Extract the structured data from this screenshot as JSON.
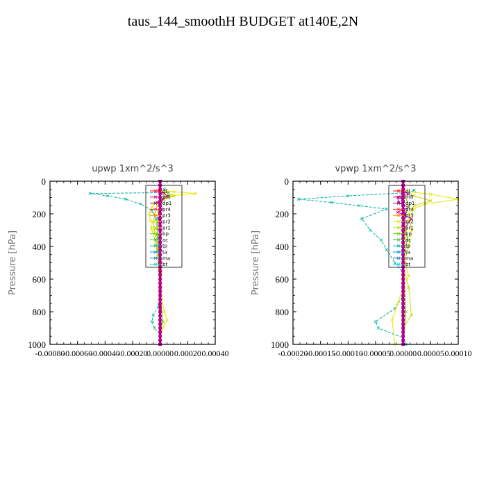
{
  "title": "taus_144_smoothH  BUDGET at140E,2N",
  "legend_labels": [
    "dt",
    "mfl",
    "dp1",
    "pr4",
    "pr3",
    "pr2",
    "pr1",
    "bp",
    "ac",
    "tp",
    "ta",
    "ma",
    "bt"
  ],
  "series_colors": {
    "dt": "#ff0000",
    "mfl": "#c0008c",
    "dp1": "#800080",
    "pr4": "#ff3030",
    "pr3": "#ff8000",
    "pr2": "#e6e600",
    "pr1": "#c8d800",
    "bp": "#60d000",
    "ac": "#30c040",
    "tp": "#00b0a0",
    "ta": "#0090d0",
    "ma": "#2070c0",
    "bt": "#00d0e0"
  },
  "chart_data": [
    {
      "type": "line",
      "title": "upwp   1xm^2/s^3",
      "ylabel": "Pressure [hPa]",
      "xlabel": "",
      "xlim": [
        -0.0008,
        0.0004
      ],
      "ylim": [
        1000,
        0
      ],
      "y_inverted": true,
      "xticks": [
        -0.0008,
        -0.0006,
        -0.0004,
        -0.0002,
        0.0,
        0.0002,
        0.0004
      ],
      "xtick_labels": [
        "-0.00080",
        "-0.00060",
        "-0.00040",
        "-0.00020",
        "0.00000",
        "0.00020",
        "0.00040"
      ],
      "yticks": [
        0,
        200,
        400,
        600,
        800,
        1000
      ],
      "ytick_labels": [
        "0",
        "200",
        "400",
        "600",
        "800",
        "1000"
      ],
      "legend_position": "upper-right inside",
      "series": [
        {
          "name": "tp",
          "x": [
            3e-05,
            6e-05,
            -0.00051,
            -0.00038,
            -0.00025,
            -0.00014,
            -6e-05,
            -3e-05,
            -2e-05,
            -1.5e-05,
            -1e-05,
            -1e-05,
            -5e-06,
            0.0,
            -1e-05,
            -5e-05,
            -6e-05,
            -4e-05,
            0.0,
            0.0,
            0.0
          ],
          "y": [
            50,
            70,
            75,
            90,
            110,
            140,
            180,
            230,
            290,
            350,
            420,
            500,
            560,
            650,
            760,
            820,
            860,
            900,
            940,
            975,
            1000
          ]
        },
        {
          "name": "pr2",
          "x": [
            0.0,
            0.0001,
            0.00026,
            8e-05,
            -4e-05,
            -6e-05,
            -8e-05,
            -7e-05,
            -6e-05,
            -3e-05,
            0.0,
            1e-05,
            0.0,
            3e-05,
            5e-05,
            2e-05,
            0.0,
            0.0
          ],
          "y": [
            55,
            65,
            75,
            90,
            130,
            160,
            200,
            240,
            300,
            380,
            480,
            560,
            650,
            800,
            850,
            900,
            950,
            1000
          ]
        },
        {
          "name": "pr1",
          "x": [
            0.0,
            6e-05,
            0.0001,
            3e-05,
            -2e-05,
            -4e-05,
            -5e-05,
            -4e-05,
            -3e-05,
            -2e-05,
            -1e-05,
            0.0,
            0.0,
            0.0
          ],
          "y": [
            60,
            75,
            90,
            110,
            150,
            200,
            250,
            300,
            380,
            460,
            540,
            650,
            800,
            1000
          ]
        },
        {
          "name": "bp",
          "x": [
            0.0,
            3e-05,
            1e-05,
            -1e-05,
            -2e-05,
            -2e-05,
            -1.5e-05,
            -1e-05,
            0.0,
            0.0,
            2e-05,
            0.0,
            0.0
          ],
          "y": [
            60,
            90,
            130,
            180,
            250,
            330,
            420,
            500,
            560,
            700,
            860,
            920,
            1000
          ]
        },
        {
          "name": "mfl",
          "x": [
            -1e-05,
            3e-05,
            5e-05,
            2e-05,
            -2e-05,
            1e-05,
            -1e-05,
            0.0,
            0.0,
            0.0,
            0.0
          ],
          "y": [
            60,
            75,
            90,
            110,
            130,
            170,
            230,
            350,
            500,
            700,
            1000
          ]
        },
        {
          "name": "dt",
          "x": [
            0.0,
            0.0,
            0.0,
            0.0,
            0.0,
            0.0,
            0.0,
            0.0,
            0.0,
            0.0,
            0.0
          ],
          "y": [
            0,
            100,
            200,
            300,
            400,
            500,
            600,
            700,
            800,
            900,
            1000
          ]
        },
        {
          "name": "dp1",
          "x": [
            0.0,
            5e-06,
            -5e-06,
            0.0,
            0.0,
            0.0,
            0.0
          ],
          "y": [
            0,
            100,
            200,
            400,
            600,
            800,
            1000
          ]
        }
      ]
    },
    {
      "type": "line",
      "title": "vpwp   1xm^2/s^3",
      "ylabel": "Pressure [hPa]",
      "xlabel": "",
      "xlim": [
        -0.0002,
        0.0001
      ],
      "ylim": [
        1000,
        0
      ],
      "y_inverted": true,
      "xticks": [
        -0.0002,
        -0.00015,
        -0.0001,
        -5e-05,
        0.0,
        5e-05,
        0.0001
      ],
      "xtick_labels": [
        "-0.00020",
        "-0.00015",
        "-0.00010",
        "-0.00005",
        "0.00000",
        "0.00005",
        "0.00010"
      ],
      "yticks": [
        0,
        200,
        400,
        600,
        800,
        1000
      ],
      "ytick_labels": [
        "0",
        "200",
        "400",
        "600",
        "800",
        "1000"
      ],
      "legend_position": "upper-right inside",
      "series": [
        {
          "name": "tp",
          "x": [
            2e-05,
            1e-05,
            -0.0001,
            -0.00019,
            -0.00013,
            -8e-05,
            -3e-05,
            -7.5e-05,
            -6e-05,
            -4e-05,
            -3e-05,
            -1.5e-05,
            0.0,
            0.0,
            -1.5e-05,
            -5e-05,
            -4.5e-05,
            0.0,
            5e-06
          ],
          "y": [
            55,
            70,
            90,
            110,
            130,
            150,
            170,
            230,
            300,
            360,
            420,
            500,
            560,
            700,
            780,
            860,
            900,
            960,
            1000
          ]
        },
        {
          "name": "pr2",
          "x": [
            0.0,
            5e-05,
            0.0001,
            4e-05,
            2e-05,
            1e-05,
            5e-06,
            0.0,
            1e-05,
            0.0,
            -1e-05,
            -2e-05,
            -1.5e-05
          ],
          "y": [
            60,
            80,
            110,
            140,
            170,
            240,
            330,
            450,
            580,
            650,
            750,
            850,
            1000
          ]
        },
        {
          "name": "pr1",
          "x": [
            0.0,
            2e-05,
            5e-05,
            2e-05,
            1e-05,
            1.5e-05,
            1e-05,
            0.0,
            1e-05,
            1.5e-05,
            0.0,
            0.0
          ],
          "y": [
            60,
            90,
            120,
            150,
            200,
            300,
            400,
            520,
            650,
            820,
            900,
            1000
          ]
        },
        {
          "name": "mfl",
          "x": [
            0.0,
            1e-05,
            -1e-05,
            -8e-06,
            1e-05,
            -1e-05,
            1.5e-05,
            0.0,
            0.0,
            0.0
          ],
          "y": [
            60,
            80,
            100,
            130,
            160,
            190,
            230,
            300,
            500,
            1000
          ]
        },
        {
          "name": "bp",
          "x": [
            0.0,
            1e-05,
            0.0,
            8e-06,
            0.0,
            5e-06,
            0.0
          ],
          "y": [
            60,
            150,
            250,
            350,
            500,
            800,
            1000
          ]
        },
        {
          "name": "dt",
          "x": [
            0.0,
            0.0,
            0.0,
            0.0,
            0.0,
            0.0,
            0.0,
            0.0,
            0.0,
            0.0,
            0.0
          ],
          "y": [
            0,
            100,
            200,
            300,
            400,
            500,
            600,
            700,
            800,
            900,
            1000
          ]
        },
        {
          "name": "dp1",
          "x": [
            0.0,
            -4e-06,
            4e-06,
            0.0,
            0.0,
            0.0
          ],
          "y": [
            0,
            100,
            200,
            400,
            700,
            1000
          ]
        }
      ]
    }
  ]
}
